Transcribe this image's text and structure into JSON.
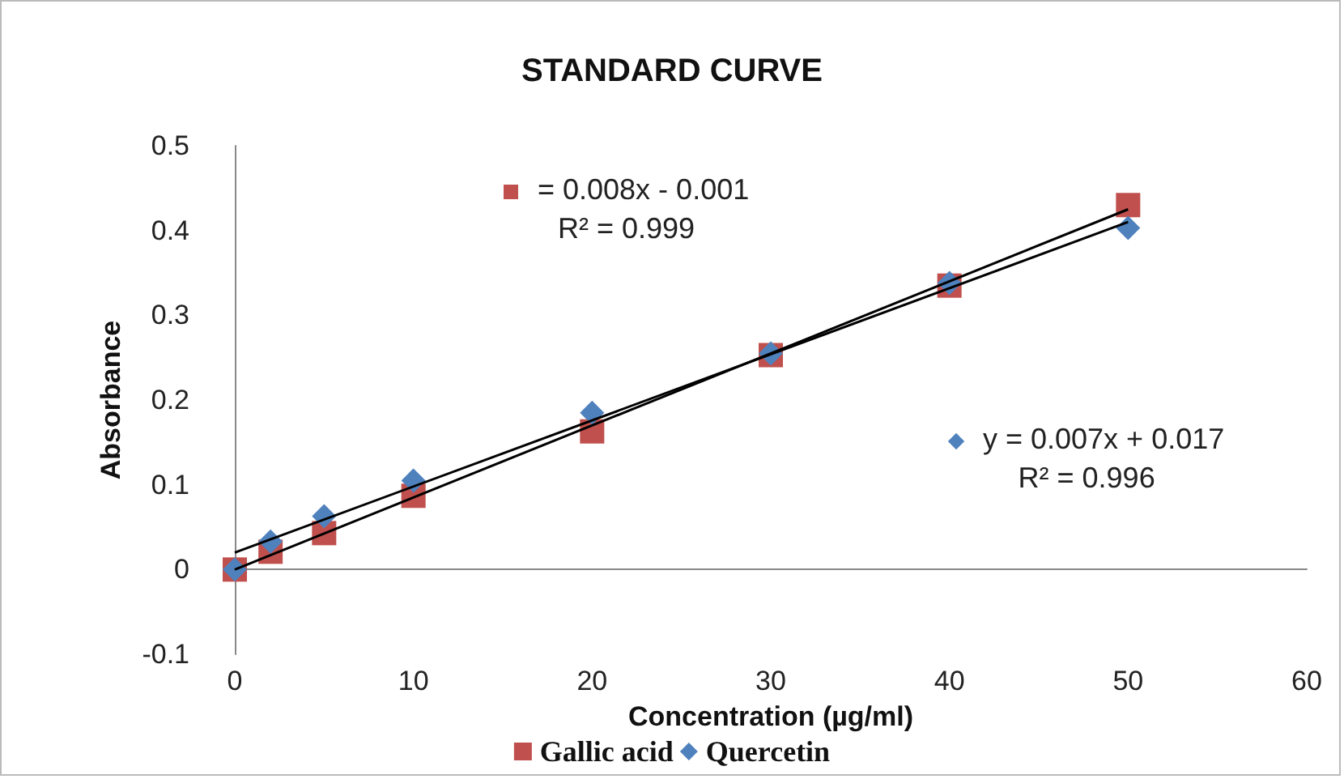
{
  "chart_data": {
    "type": "scatter",
    "title": "STANDARD CURVE",
    "xlabel": "Concentration (µg/ml)",
    "ylabel": "Absorbance",
    "xlim": [
      0,
      60
    ],
    "xticks": [
      0,
      10,
      20,
      30,
      40,
      50,
      60
    ],
    "ylim": [
      -0.1,
      0.5
    ],
    "yticks": [
      -0.1,
      0,
      0.1,
      0.2,
      0.3,
      0.4,
      0.5
    ],
    "legend": "bottom",
    "series": [
      {
        "name": "Gallic acid",
        "color": "#c0504d",
        "marker": "square",
        "x": [
          0,
          2,
          5,
          10,
          20,
          30,
          40,
          50
        ],
        "values": [
          0,
          0.021,
          0.043,
          0.087,
          0.163,
          0.253,
          0.335,
          0.43
        ]
      },
      {
        "name": "Quercetin",
        "color": "#4f81bd",
        "marker": "diamond",
        "x": [
          0,
          2,
          5,
          10,
          20,
          30,
          40,
          50
        ],
        "values": [
          0,
          0.033,
          0.063,
          0.105,
          0.185,
          0.255,
          0.338,
          0.403
        ]
      },
      {
        "type": "line",
        "color": "#000000",
        "marker": "none",
        "x": [
          0,
          50
        ],
        "values": [
          0,
          0.425
        ]
      },
      {
        "type": "line",
        "color": "#000000",
        "marker": "none",
        "x": [
          0,
          50
        ],
        "values": [
          0.02,
          0.41
        ]
      }
    ],
    "annotations": [
      "= 0.008x - 0.001\nR² = 0.999",
      "y = 0.007x + 0.017\nR² = 0.996"
    ]
  }
}
